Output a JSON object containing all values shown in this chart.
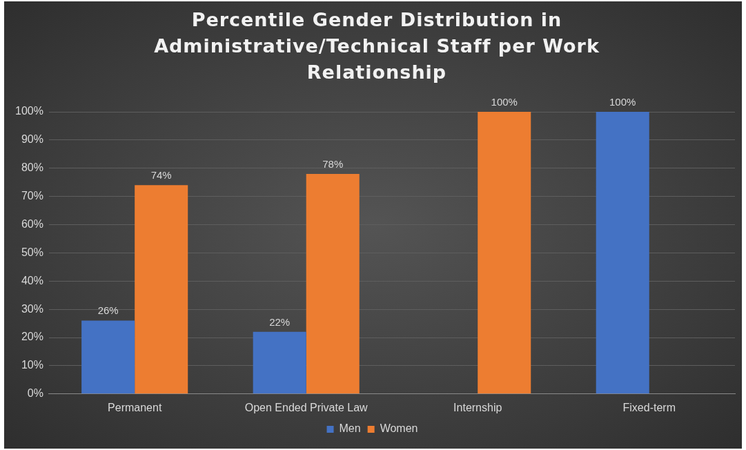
{
  "chart_data": {
    "type": "bar",
    "title": "Percentile Gender Distribution in Administrative/Technical Staff per Work Relationship",
    "categories": [
      "Permanent",
      "Open Ended Private Law",
      "Internship",
      "Fixed-term"
    ],
    "series": [
      {
        "name": "Men",
        "color": "#4472c4",
        "values": [
          26,
          22,
          null,
          100
        ],
        "value_labels": [
          "26%",
          "22%",
          null,
          "100%"
        ]
      },
      {
        "name": "Women",
        "color": "#ed7d31",
        "values": [
          74,
          78,
          100,
          null
        ],
        "value_labels": [
          "74%",
          "78%",
          "100%",
          null
        ]
      }
    ],
    "ylim": [
      0,
      100
    ],
    "yticks": [
      {
        "value": 0,
        "label": "0%"
      },
      {
        "value": 10,
        "label": "10%"
      },
      {
        "value": 20,
        "label": "20%"
      },
      {
        "value": 30,
        "label": "30%"
      },
      {
        "value": 40,
        "label": "40%"
      },
      {
        "value": 50,
        "label": "50%"
      },
      {
        "value": 60,
        "label": "60%"
      },
      {
        "value": 70,
        "label": "70%"
      },
      {
        "value": 80,
        "label": "80%"
      },
      {
        "value": 90,
        "label": "90%"
      },
      {
        "value": 100,
        "label": "100%"
      }
    ],
    "grid": "y",
    "legend": "bottom"
  }
}
